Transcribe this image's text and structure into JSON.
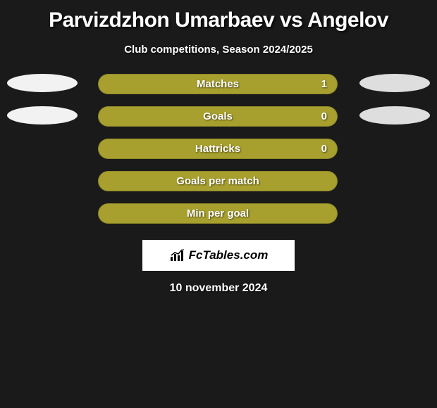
{
  "title": "Parvizdzhon Umarbaev vs Angelov",
  "subtitle": "Club competitions, Season 2024/2025",
  "date": "10 november 2024",
  "logo_text": "FcTables.com",
  "background_color": "#1a1a1a",
  "ellipse_left_color": "#f2f2f2",
  "ellipse_right_color": "#dedede",
  "bar_color": "#a8a02e",
  "logo_bg": "#ffffff",
  "rows": [
    {
      "label": "Matches",
      "value": "1",
      "show_ellipses": true,
      "show_value": true
    },
    {
      "label": "Goals",
      "value": "0",
      "show_ellipses": true,
      "show_value": true
    },
    {
      "label": "Hattricks",
      "value": "0",
      "show_ellipses": false,
      "show_value": true
    },
    {
      "label": "Goals per match",
      "value": "",
      "show_ellipses": false,
      "show_value": false
    },
    {
      "label": "Min per goal",
      "value": "",
      "show_ellipses": false,
      "show_value": false
    }
  ]
}
